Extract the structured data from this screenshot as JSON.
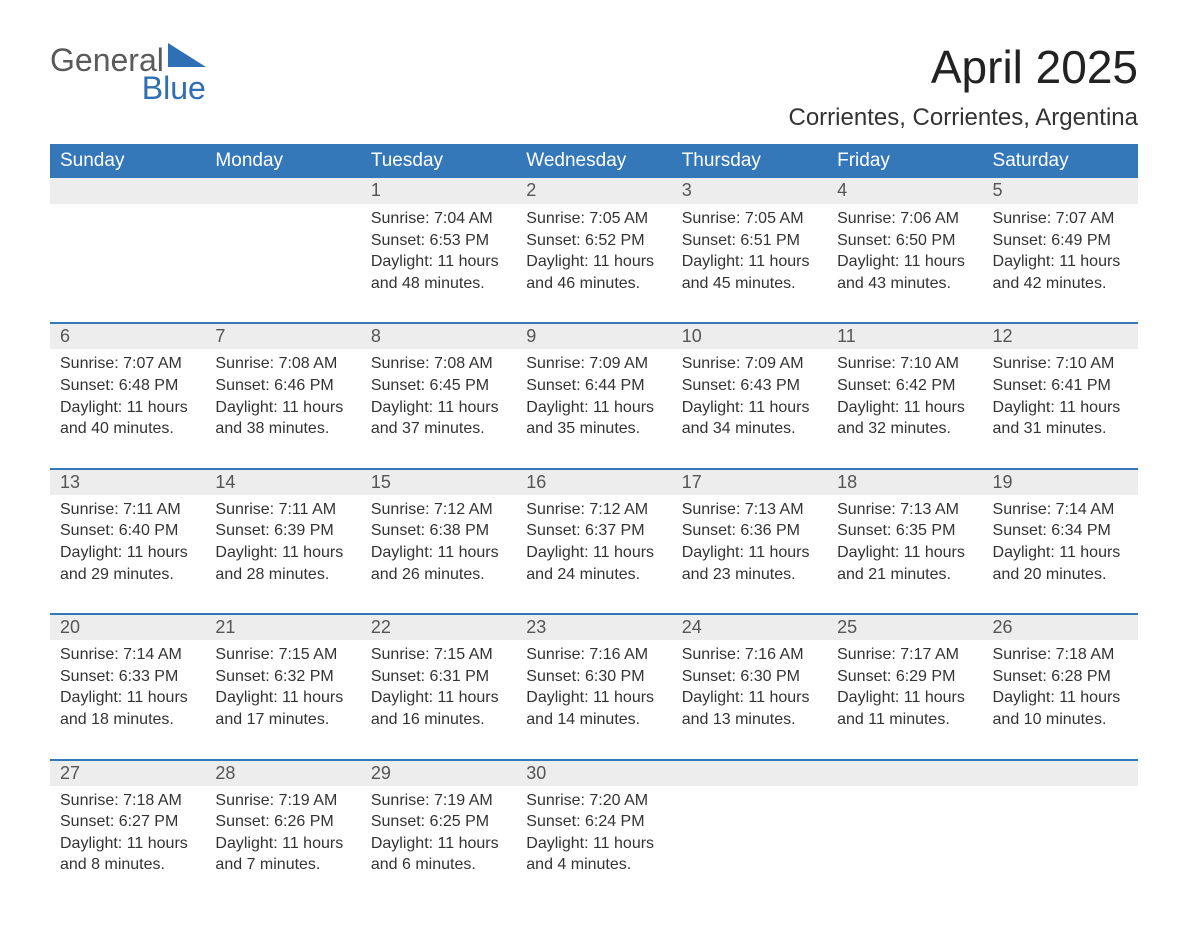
{
  "logo": {
    "word1": "General",
    "word2": "Blue",
    "triangle_color": "#2f6fb3",
    "text_color": "#5a5a5a"
  },
  "title": "April 2025",
  "subtitle": "Corrientes, Corrientes, Argentina",
  "colors": {
    "header_bg": "#3478b9",
    "header_text": "#ffffff",
    "daynum_bg": "#ededed",
    "row_border": "#3478b9",
    "body_text": "#333333",
    "title_text": "#222222",
    "page_bg": "#ffffff"
  },
  "fontsizes": {
    "title": 46,
    "subtitle": 24,
    "header": 19,
    "daynum": 18,
    "body": 16
  },
  "weekdays": [
    "Sunday",
    "Monday",
    "Tuesday",
    "Wednesday",
    "Thursday",
    "Friday",
    "Saturday"
  ],
  "weeks": [
    {
      "days": [
        null,
        null,
        {
          "n": "1",
          "sunrise": "7:04 AM",
          "sunset": "6:53 PM",
          "daylight": "11 hours and 48 minutes."
        },
        {
          "n": "2",
          "sunrise": "7:05 AM",
          "sunset": "6:52 PM",
          "daylight": "11 hours and 46 minutes."
        },
        {
          "n": "3",
          "sunrise": "7:05 AM",
          "sunset": "6:51 PM",
          "daylight": "11 hours and 45 minutes."
        },
        {
          "n": "4",
          "sunrise": "7:06 AM",
          "sunset": "6:50 PM",
          "daylight": "11 hours and 43 minutes."
        },
        {
          "n": "5",
          "sunrise": "7:07 AM",
          "sunset": "6:49 PM",
          "daylight": "11 hours and 42 minutes."
        }
      ]
    },
    {
      "days": [
        {
          "n": "6",
          "sunrise": "7:07 AM",
          "sunset": "6:48 PM",
          "daylight": "11 hours and 40 minutes."
        },
        {
          "n": "7",
          "sunrise": "7:08 AM",
          "sunset": "6:46 PM",
          "daylight": "11 hours and 38 minutes."
        },
        {
          "n": "8",
          "sunrise": "7:08 AM",
          "sunset": "6:45 PM",
          "daylight": "11 hours and 37 minutes."
        },
        {
          "n": "9",
          "sunrise": "7:09 AM",
          "sunset": "6:44 PM",
          "daylight": "11 hours and 35 minutes."
        },
        {
          "n": "10",
          "sunrise": "7:09 AM",
          "sunset": "6:43 PM",
          "daylight": "11 hours and 34 minutes."
        },
        {
          "n": "11",
          "sunrise": "7:10 AM",
          "sunset": "6:42 PM",
          "daylight": "11 hours and 32 minutes."
        },
        {
          "n": "12",
          "sunrise": "7:10 AM",
          "sunset": "6:41 PM",
          "daylight": "11 hours and 31 minutes."
        }
      ]
    },
    {
      "days": [
        {
          "n": "13",
          "sunrise": "7:11 AM",
          "sunset": "6:40 PM",
          "daylight": "11 hours and 29 minutes."
        },
        {
          "n": "14",
          "sunrise": "7:11 AM",
          "sunset": "6:39 PM",
          "daylight": "11 hours and 28 minutes."
        },
        {
          "n": "15",
          "sunrise": "7:12 AM",
          "sunset": "6:38 PM",
          "daylight": "11 hours and 26 minutes."
        },
        {
          "n": "16",
          "sunrise": "7:12 AM",
          "sunset": "6:37 PM",
          "daylight": "11 hours and 24 minutes."
        },
        {
          "n": "17",
          "sunrise": "7:13 AM",
          "sunset": "6:36 PM",
          "daylight": "11 hours and 23 minutes."
        },
        {
          "n": "18",
          "sunrise": "7:13 AM",
          "sunset": "6:35 PM",
          "daylight": "11 hours and 21 minutes."
        },
        {
          "n": "19",
          "sunrise": "7:14 AM",
          "sunset": "6:34 PM",
          "daylight": "11 hours and 20 minutes."
        }
      ]
    },
    {
      "days": [
        {
          "n": "20",
          "sunrise": "7:14 AM",
          "sunset": "6:33 PM",
          "daylight": "11 hours and 18 minutes."
        },
        {
          "n": "21",
          "sunrise": "7:15 AM",
          "sunset": "6:32 PM",
          "daylight": "11 hours and 17 minutes."
        },
        {
          "n": "22",
          "sunrise": "7:15 AM",
          "sunset": "6:31 PM",
          "daylight": "11 hours and 16 minutes."
        },
        {
          "n": "23",
          "sunrise": "7:16 AM",
          "sunset": "6:30 PM",
          "daylight": "11 hours and 14 minutes."
        },
        {
          "n": "24",
          "sunrise": "7:16 AM",
          "sunset": "6:30 PM",
          "daylight": "11 hours and 13 minutes."
        },
        {
          "n": "25",
          "sunrise": "7:17 AM",
          "sunset": "6:29 PM",
          "daylight": "11 hours and 11 minutes."
        },
        {
          "n": "26",
          "sunrise": "7:18 AM",
          "sunset": "6:28 PM",
          "daylight": "11 hours and 10 minutes."
        }
      ]
    },
    {
      "days": [
        {
          "n": "27",
          "sunrise": "7:18 AM",
          "sunset": "6:27 PM",
          "daylight": "11 hours and 8 minutes."
        },
        {
          "n": "28",
          "sunrise": "7:19 AM",
          "sunset": "6:26 PM",
          "daylight": "11 hours and 7 minutes."
        },
        {
          "n": "29",
          "sunrise": "7:19 AM",
          "sunset": "6:25 PM",
          "daylight": "11 hours and 6 minutes."
        },
        {
          "n": "30",
          "sunrise": "7:20 AM",
          "sunset": "6:24 PM",
          "daylight": "11 hours and 4 minutes."
        },
        null,
        null,
        null
      ]
    }
  ],
  "labels": {
    "sunrise": "Sunrise: ",
    "sunset": "Sunset: ",
    "daylight": "Daylight: "
  }
}
